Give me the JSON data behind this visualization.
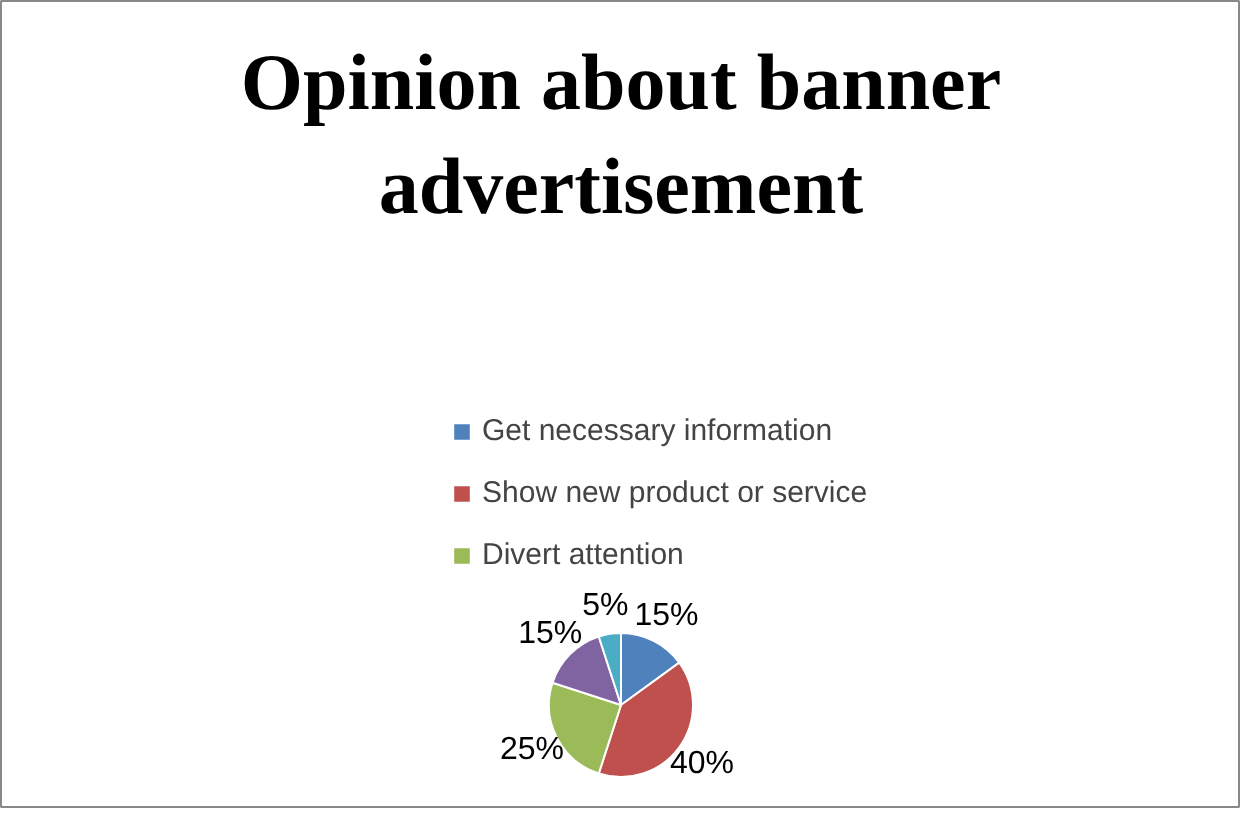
{
  "chart_data": {
    "type": "pie",
    "title": "Opinion about banner advertisement",
    "categories": [
      "Get necessary information",
      "Show new product or service",
      "Divert attention",
      null,
      null
    ],
    "values": [
      15,
      40,
      25,
      15,
      5
    ],
    "colors": [
      "#4f81bd",
      "#c0504d",
      "#9bbb59",
      "#8064a2",
      "#4bacc6"
    ],
    "value_labels": [
      "15%",
      "40%",
      "25%",
      "15%",
      "5%"
    ],
    "legend": "top"
  }
}
